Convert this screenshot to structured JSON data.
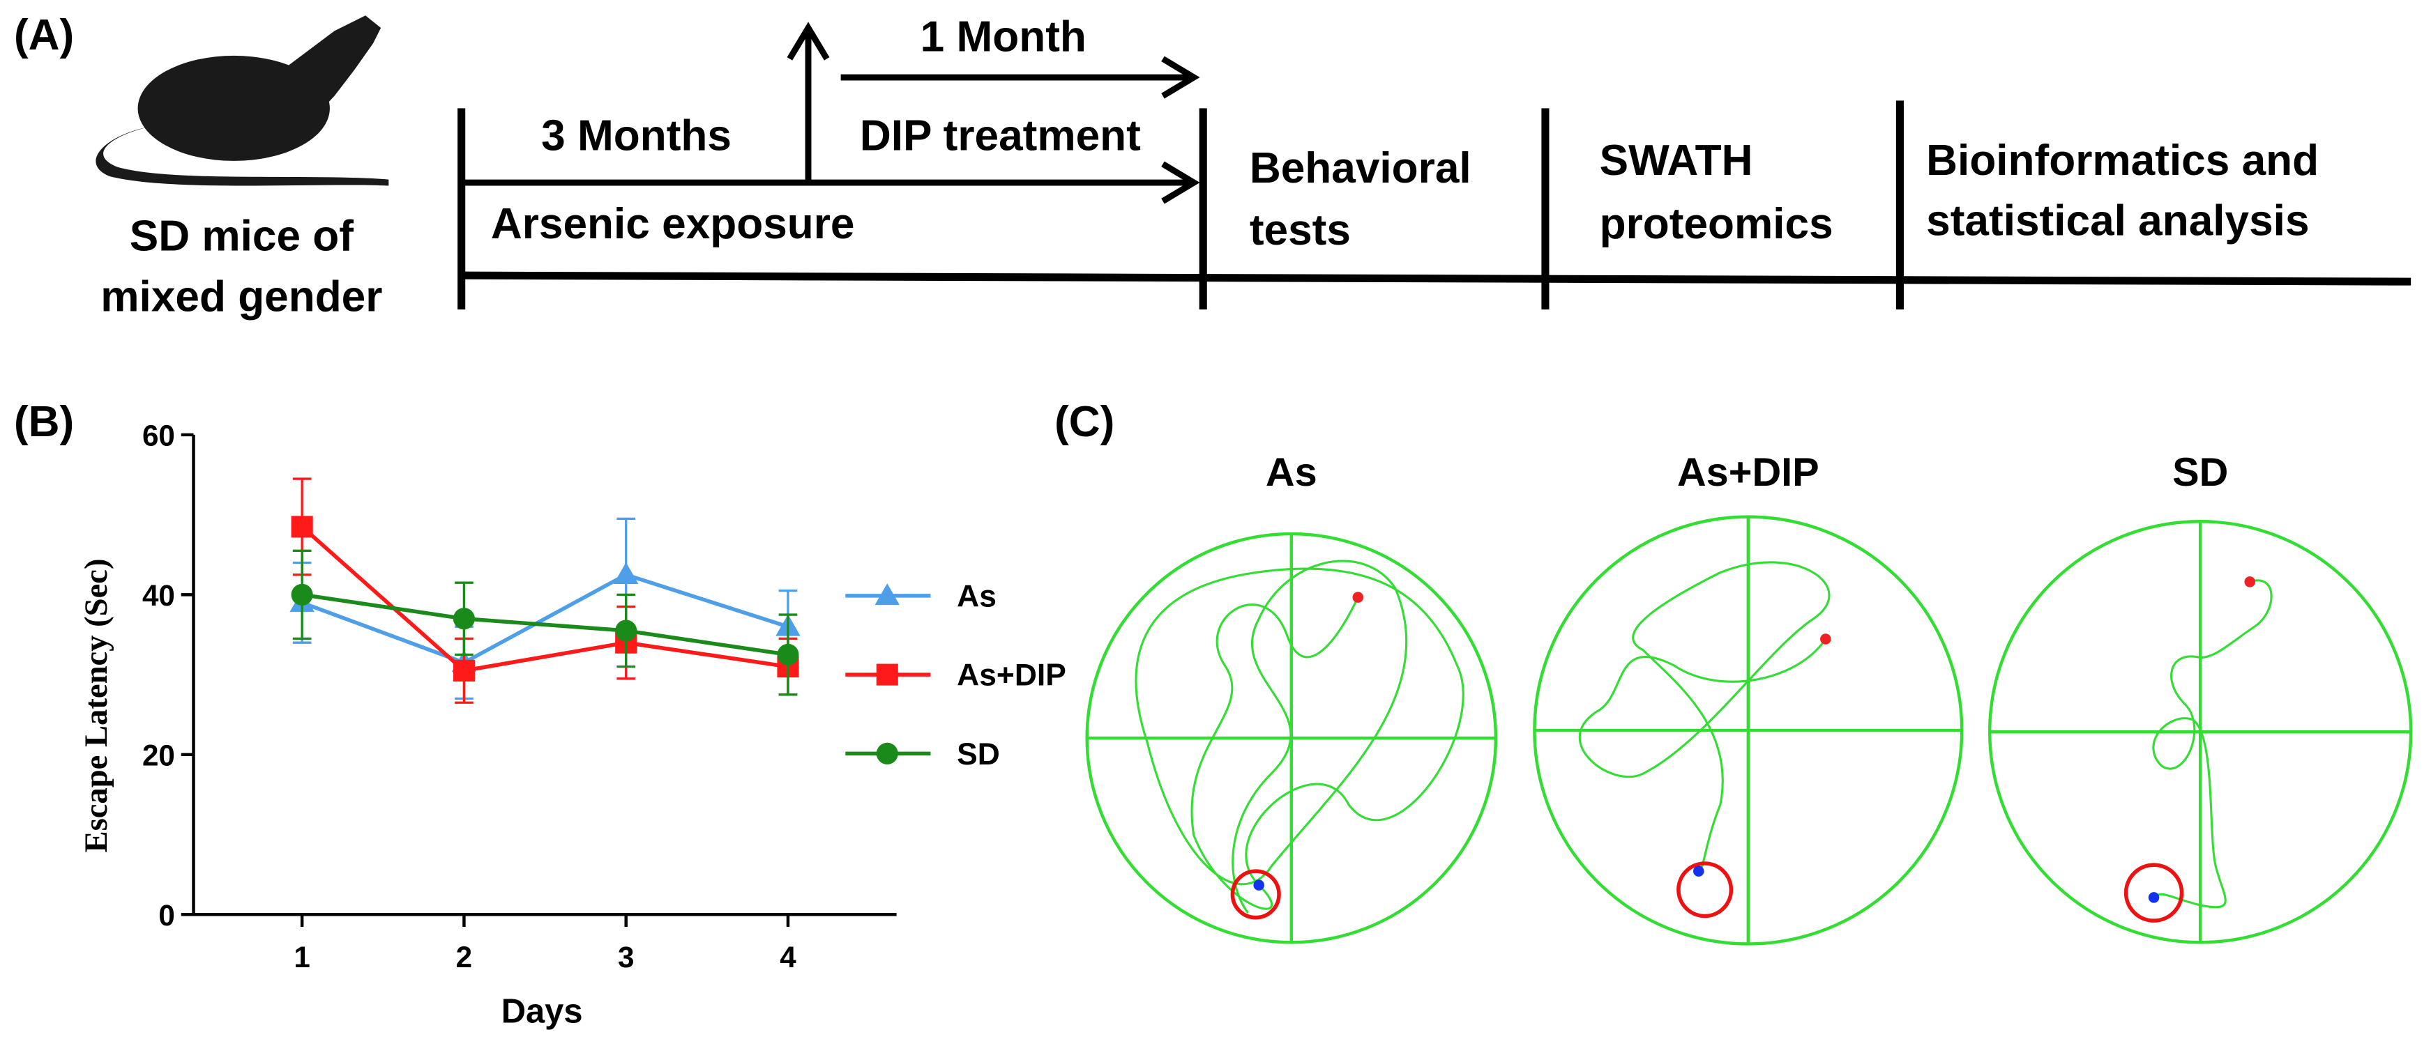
{
  "panel_a": {
    "label": "(A)",
    "subject": [
      "SD mice of",
      "mixed gender"
    ],
    "three_months": "3 Months",
    "one_month": "1 Month",
    "dip": "DIP treatment",
    "arsenic": "Arsenic exposure",
    "behavioral": [
      "Behavioral",
      "tests"
    ],
    "swath": [
      "SWATH",
      "proteomics"
    ],
    "bioinformatics": [
      "Bioinformatics and",
      "statistical analysis"
    ]
  },
  "chart_data": {
    "type": "line",
    "panel_label": "(B)",
    "x_label": "Days",
    "y_label": "Escape Latency (Sec)",
    "x": [
      1,
      2,
      3,
      4
    ],
    "xlim": [
      0.33,
      4.67
    ],
    "xticks": [
      1,
      2,
      3,
      4
    ],
    "ylim": [
      0,
      60
    ],
    "yticks": [
      0,
      20,
      40,
      60
    ],
    "legend": "right",
    "series": [
      {
        "name": "As",
        "color": "#4f9fe8",
        "marker": "triangle",
        "values": [
          39,
          31.5,
          42.5,
          36
        ],
        "errors": [
          5,
          4.5,
          7,
          4.5
        ]
      },
      {
        "name": "As+DIP",
        "color": "#ff1a1a",
        "marker": "square",
        "values": [
          48.5,
          30.5,
          34,
          31
        ],
        "errors": [
          6,
          4,
          4.5,
          3.5
        ]
      },
      {
        "name": "SD",
        "color": "#1a8a1a",
        "marker": "circle",
        "values": [
          40,
          37,
          35.5,
          32.5
        ],
        "errors": [
          5.5,
          4.5,
          4.5,
          5
        ]
      }
    ]
  },
  "panel_c": {
    "label": "(C)",
    "titles": [
      "As",
      "As+DIP",
      "SD"
    ]
  }
}
